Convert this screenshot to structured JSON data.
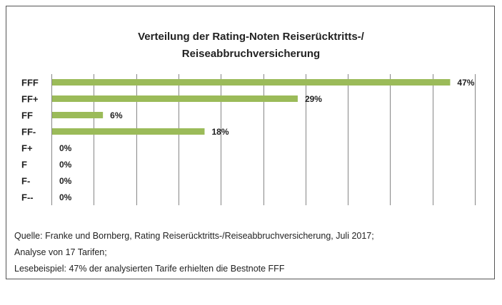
{
  "chart_data": {
    "type": "bar",
    "orientation": "horizontal",
    "title_lines": [
      "Verteilung der Rating-Noten Reiserücktritts-/",
      "Reiseabbruchversicherung"
    ],
    "categories": [
      "FFF",
      "FF+",
      "FF",
      "FF-",
      "F+",
      "F",
      "F-",
      "F--"
    ],
    "values": [
      47,
      29,
      6,
      18,
      0,
      0,
      0,
      0
    ],
    "value_labels": [
      "47%",
      "29%",
      "6%",
      "18%",
      "0%",
      "0%",
      "0%",
      "0%"
    ],
    "xlim": [
      0,
      50
    ],
    "x_gridlines": true,
    "bar_color": "#9bbb59",
    "grid_color": "#868686"
  },
  "notes": [
    "Quelle: Franke und Bornberg, Rating Reiserücktritts-/Reiseabbruchversicherung, Juli 2017;",
    "Analyse von 17 Tarifen;",
    "Lesebeispiel: 47% der analysierten Tarife erhielten die Bestnote FFF"
  ]
}
